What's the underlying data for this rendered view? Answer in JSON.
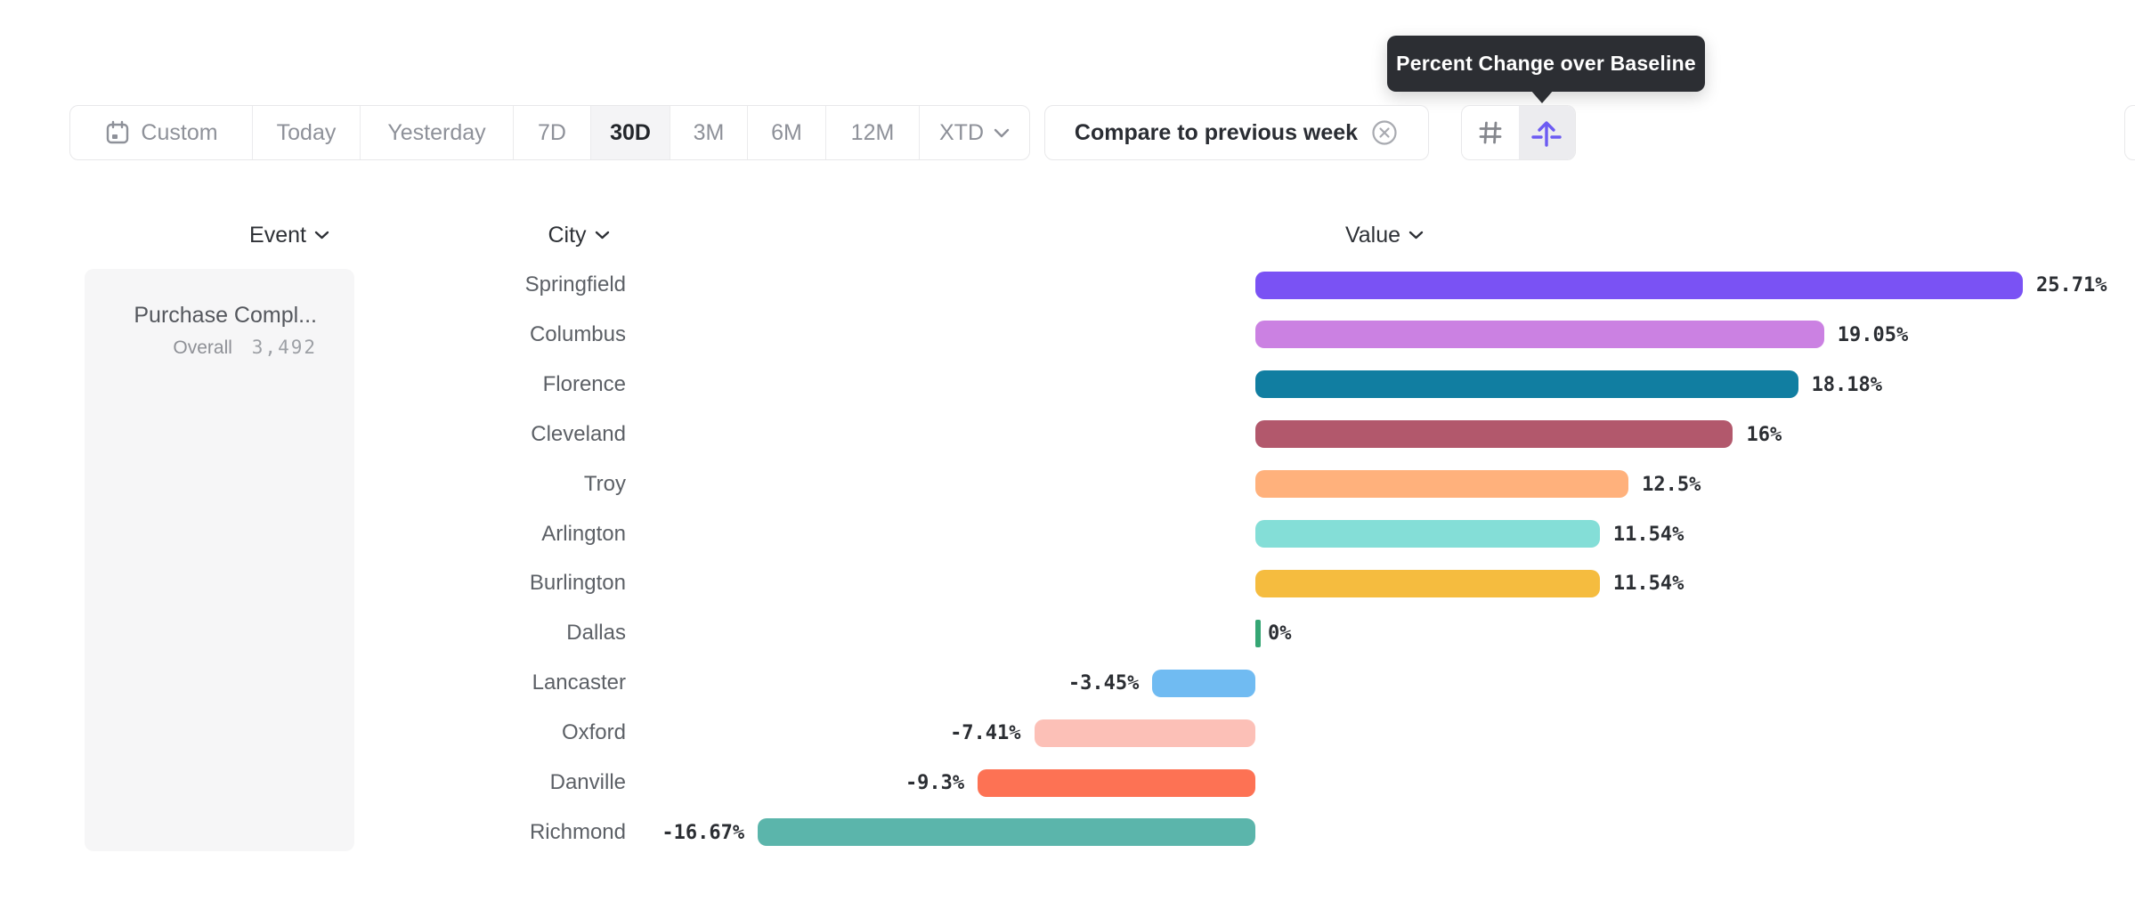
{
  "tooltip": {
    "text": "Percent Change over Baseline"
  },
  "toolbar": {
    "ranges": [
      {
        "label": "Custom",
        "selected": false,
        "icon": "calendar-icon"
      },
      {
        "label": "Today",
        "selected": false
      },
      {
        "label": "Yesterday",
        "selected": false
      },
      {
        "label": "7D",
        "selected": false
      },
      {
        "label": "30D",
        "selected": true
      },
      {
        "label": "3M",
        "selected": false
      },
      {
        "label": "6M",
        "selected": false
      },
      {
        "label": "12M",
        "selected": false
      },
      {
        "label": "XTD",
        "selected": false,
        "icon": "chevron-down-icon"
      }
    ],
    "compare": {
      "label": "Compare to previous week",
      "dismiss_icon": "x-circle-icon"
    },
    "view_toggle": [
      {
        "icon": "hash-icon",
        "selected": false
      },
      {
        "icon": "arrow-up-from-baseline-icon",
        "selected": true
      }
    ]
  },
  "table": {
    "headers": [
      {
        "label": "Event",
        "sort_icon": "chevron-down-icon"
      },
      {
        "label": "City",
        "sort_icon": "chevron-down-icon"
      },
      {
        "label": "Value",
        "sort_icon": "chevron-down-icon"
      }
    ]
  },
  "event_panel": {
    "event_name": "Purchase Compl...",
    "overall_label": "Overall",
    "overall_value": "3,492"
  },
  "chart_data": {
    "type": "bar",
    "orientation": "horizontal",
    "title": "Percent Change over Baseline",
    "categories": [
      "Springfield",
      "Columbus",
      "Florence",
      "Cleveland",
      "Troy",
      "Arlington",
      "Burlington",
      "Dallas",
      "Lancaster",
      "Oxford",
      "Danville",
      "Richmond"
    ],
    "values": [
      25.71,
      19.05,
      18.18,
      16,
      12.5,
      11.54,
      11.54,
      0,
      -3.45,
      -7.41,
      -9.3,
      -16.67
    ],
    "value_labels": [
      "25.71%",
      "19.05%",
      "18.18%",
      "16%",
      "12.5%",
      "11.54%",
      "11.54%",
      "0%",
      "-3.45%",
      "-7.41%",
      "-9.3%",
      "-16.67%"
    ],
    "bar_colors": [
      "#7a52f4",
      "#cb81e2",
      "#117ea1",
      "#b2586c",
      "#ffb17c",
      "#84ded7",
      "#f5bc3f",
      "#35a674",
      "#70bbf2",
      "#fcc0b7",
      "#fd7254",
      "#5bb5ab"
    ],
    "unit": "%",
    "baseline": 0,
    "xlim": [
      -16.67,
      25.71
    ],
    "grid": false,
    "legend": false
  },
  "colors": {
    "accent_purple": "#6c5bf2",
    "tooltip_bg": "#2c2e33",
    "selected_segment_bg": "#f4f4f6",
    "border": "#e8e8ea",
    "zero_tick_green": "#35a674"
  }
}
